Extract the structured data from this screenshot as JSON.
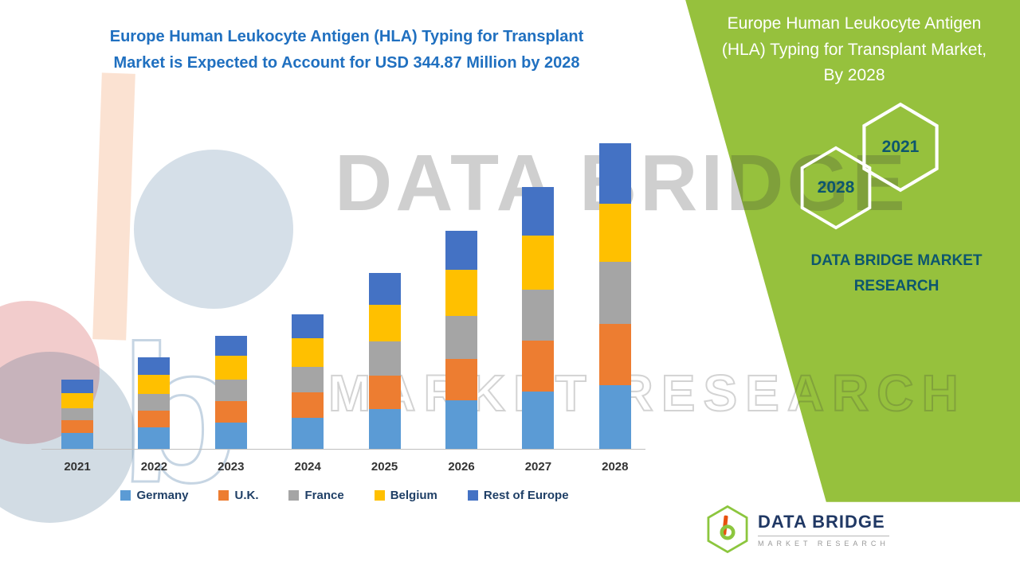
{
  "theme": {
    "green": "#96C13D",
    "title_blue": "#2070C0",
    "legend_navy": "#1F3F66",
    "panel_teal": "#0D566E"
  },
  "header": {
    "title_line1": "Europe Human Leukocyte Antigen (HLA) Typing for Transplant",
    "title_line2": "Market is Expected to Account for USD 344.87 Million by 2028"
  },
  "chart_data": {
    "type": "bar",
    "stacked": true,
    "title": "Europe Human Leukocyte Antigen (HLA) Typing for Transplant Market is Expected to Account for USD 344.87 Million by 2028",
    "unit": "USD Million",
    "categories": [
      "2021",
      "2022",
      "2023",
      "2024",
      "2025",
      "2026",
      "2027",
      "2028"
    ],
    "series": [
      {
        "name": "Germany",
        "color": "#5B9BD5",
        "values": [
          18,
          24,
          30,
          35,
          45,
          55,
          65,
          72
        ]
      },
      {
        "name": "U.K.",
        "color": "#ED7D31",
        "values": [
          14,
          19,
          24,
          29,
          38,
          47,
          57,
          68.87
        ]
      },
      {
        "name": "France",
        "color": "#A5A5A5",
        "values": [
          14,
          19,
          24,
          29,
          38,
          48,
          58,
          70
        ]
      },
      {
        "name": "Belgium",
        "color": "#FFC000",
        "values": [
          17,
          22,
          27,
          32,
          42,
          52,
          61,
          66
        ]
      },
      {
        "name": "Rest of Europe",
        "color": "#4472C4",
        "values": [
          15,
          19,
          23,
          27,
          36,
          44,
          55,
          68
        ]
      }
    ],
    "totals": [
      78,
      103,
      128,
      152,
      199,
      246,
      296,
      344.87
    ],
    "total_2028": 344.87,
    "ylim": [
      0,
      400
    ],
    "xlabel": "",
    "ylabel": "",
    "grid": false,
    "legend_position": "bottom"
  },
  "side_panel": {
    "title_line1": "Europe Human Leukocyte Antigen",
    "title_line2": "(HLA) Typing for Transplant Market,",
    "title_line3": "By 2028",
    "hexagon_top_label": "2021",
    "hexagon_bottom_label": "2028",
    "brand_line1": "DATA BRIDGE MARKET",
    "brand_line2": "RESEARCH"
  },
  "watermark": {
    "brand": "DATA BRIDGE",
    "sub": "MARKET RESEARCH",
    "b_glyph": "b"
  },
  "footer_logo": {
    "name": "DATA BRIDGE",
    "tagline": "MARKET RESEARCH"
  }
}
